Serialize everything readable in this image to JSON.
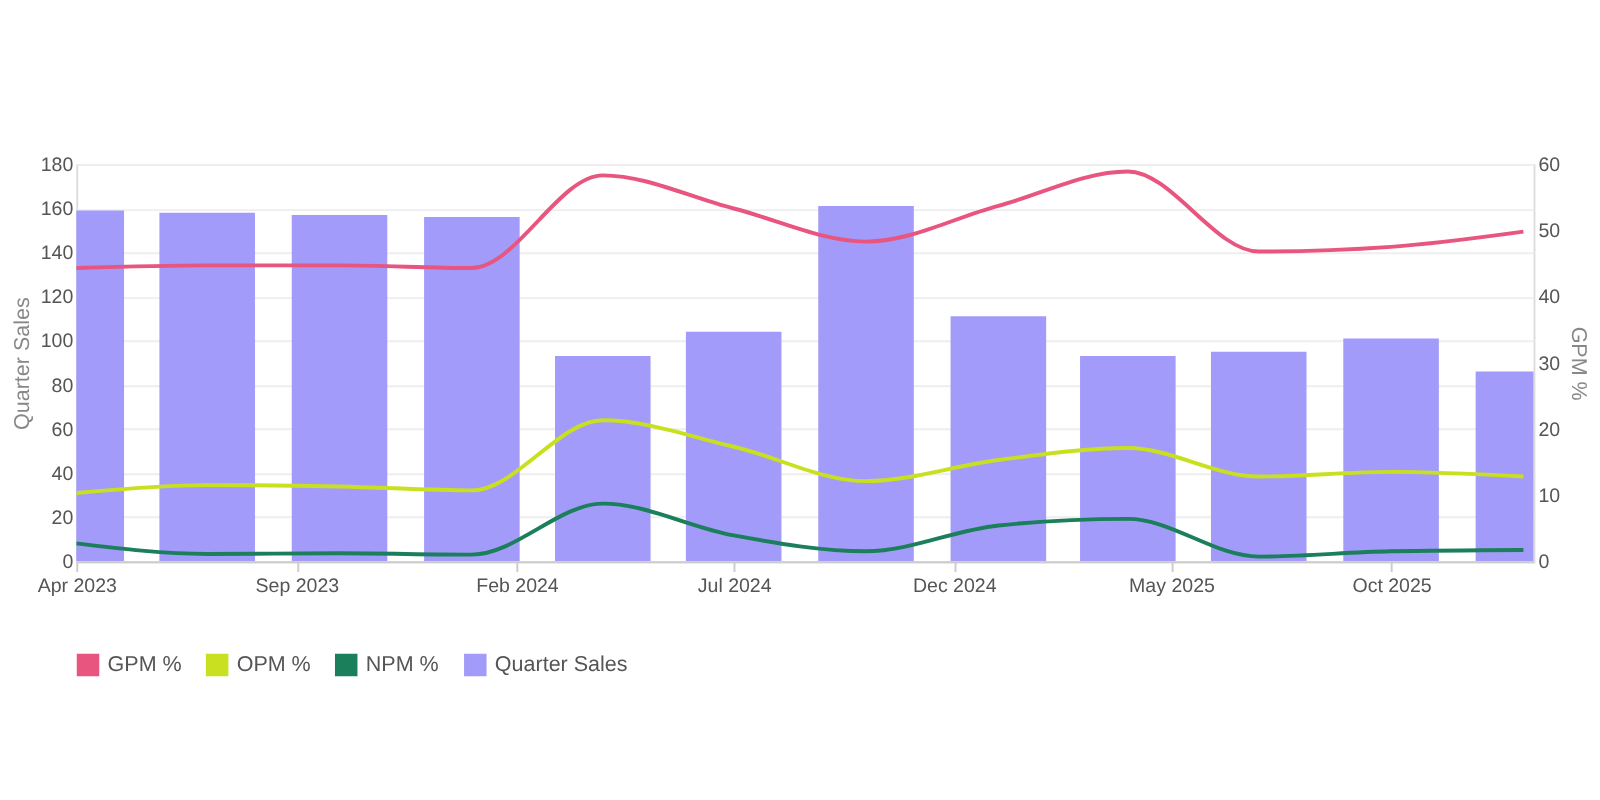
{
  "chart_data": {
    "type": "bar",
    "x": [
      "2023-04-01",
      "2023-07-01",
      "2023-10-01",
      "2024-01-01",
      "2024-04-01",
      "2024-07-01",
      "2024-10-01",
      "2025-01-01",
      "2025-04-01",
      "2025-07-01",
      "2025-10-01",
      "2026-01-01"
    ],
    "series": [
      {
        "name": "GPM %",
        "type": "line",
        "axis": "y2",
        "color": "#e8557f",
        "values": [
          44.3,
          44.7,
          44.7,
          44.3,
          58.3,
          53.3,
          48.3,
          53.7,
          58.9,
          46.8,
          47.5,
          49.8
        ]
      },
      {
        "name": "OPM %",
        "type": "line",
        "axis": "y2",
        "color": "#c8e020",
        "values": [
          10.3,
          11.5,
          11.3,
          10.7,
          21.3,
          17.3,
          12.1,
          15.3,
          17.1,
          12.8,
          13.5,
          12.8
        ]
      },
      {
        "name": "NPM %",
        "type": "line",
        "axis": "y2",
        "color": "#1a7f5a",
        "values": [
          2.7,
          1.1,
          1.2,
          1.0,
          8.7,
          3.9,
          1.5,
          5.4,
          6.4,
          0.7,
          1.5,
          1.7
        ]
      },
      {
        "name": "Quarter Sales",
        "color": "#a29bf9",
        "values": [
          159,
          158,
          157,
          156,
          93,
          104,
          161,
          111,
          93,
          95,
          101,
          86
        ]
      }
    ],
    "ylabel": "Quarter Sales",
    "y2label": "GPM %",
    "xlim": [
      "2023-04-01",
      "2026-01-08"
    ],
    "xticks": [
      {
        "value": "2023-04-01",
        "label": "Apr 2023"
      },
      {
        "value": "2023-09-01",
        "label": "Sep 2023"
      },
      {
        "value": "2024-02-01",
        "label": "Feb 2024"
      },
      {
        "value": "2024-07-01",
        "label": "Jul 2024"
      },
      {
        "value": "2024-12-01",
        "label": "Dec 2024"
      },
      {
        "value": "2025-05-01",
        "label": "May 2025"
      },
      {
        "value": "2025-10-01",
        "label": "Oct 2025"
      }
    ],
    "ylim": [
      0,
      180
    ],
    "yticks": [
      0,
      20,
      40,
      60,
      80,
      100,
      120,
      140,
      160,
      180
    ],
    "y2lim": [
      0,
      60
    ],
    "y2ticks": [
      0,
      10,
      20,
      30,
      40,
      50,
      60
    ],
    "grid": "y",
    "legend": "bottom",
    "marker": "none",
    "line_style": "solid"
  }
}
